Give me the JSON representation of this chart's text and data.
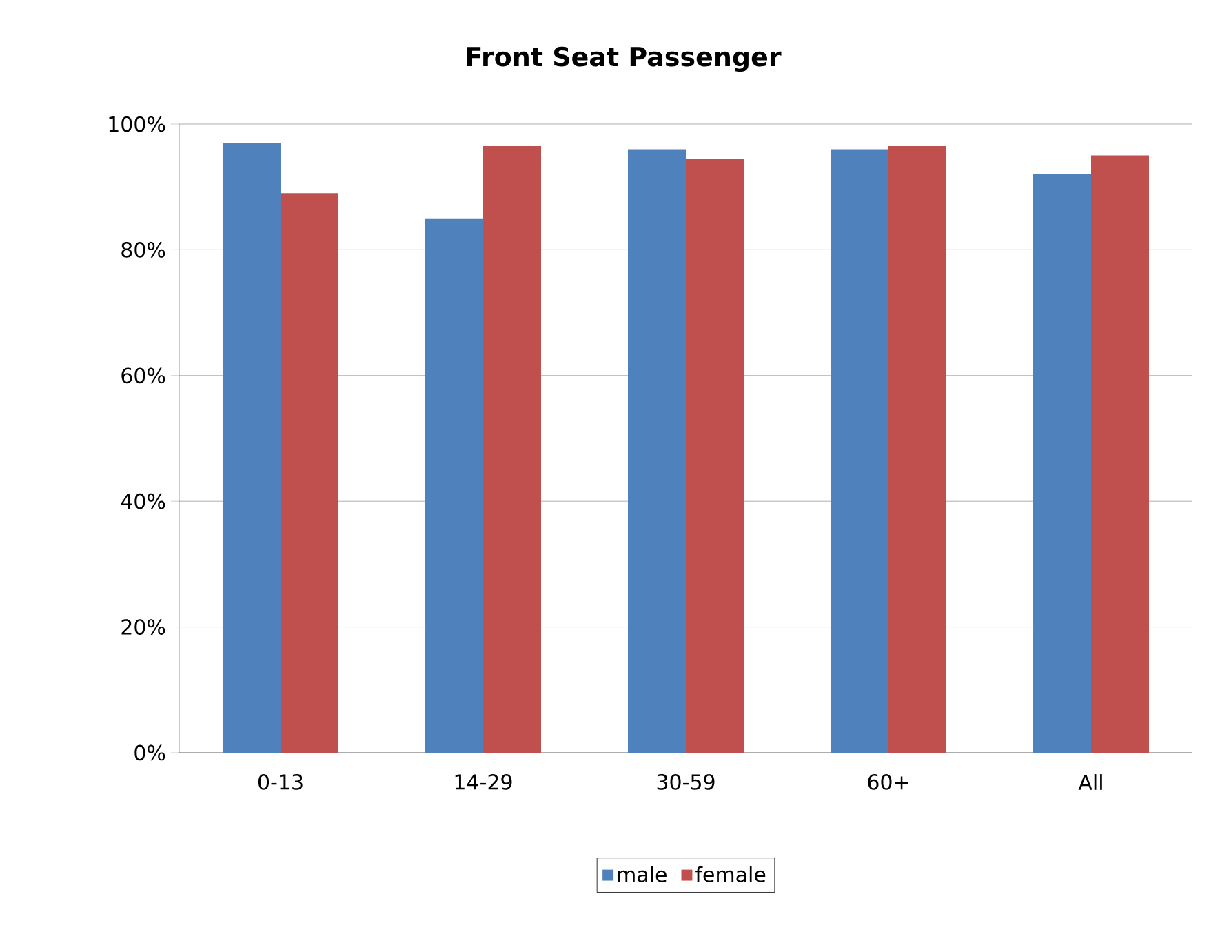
{
  "chart_data": {
    "type": "bar",
    "title": "Front Seat Passenger",
    "categories": [
      "0-13",
      "14-29",
      "30-59",
      "60+",
      "All"
    ],
    "series": [
      {
        "name": "male",
        "color": "#4f81bd",
        "values": [
          97,
          85,
          96,
          96,
          92
        ]
      },
      {
        "name": "female",
        "color": "#c0504d",
        "values": [
          89,
          96.5,
          94.5,
          96.5,
          95
        ]
      }
    ],
    "ylim": [
      0,
      100
    ],
    "yticks": [
      {
        "value": 0,
        "label": "0%"
      },
      {
        "value": 20,
        "label": "20%"
      },
      {
        "value": 40,
        "label": "40%"
      },
      {
        "value": 60,
        "label": "60%"
      },
      {
        "value": 80,
        "label": "80%"
      },
      {
        "value": 100,
        "label": "100%"
      }
    ],
    "grid": "y",
    "legend": "bottom"
  }
}
